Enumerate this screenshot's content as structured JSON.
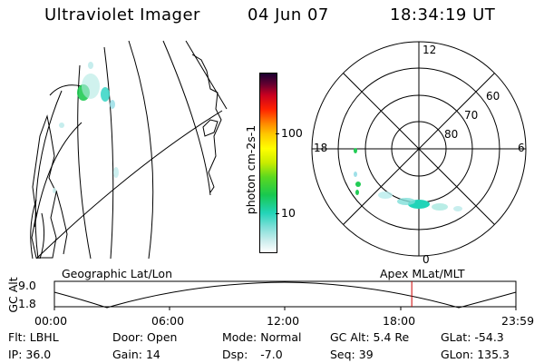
{
  "header": {
    "title": "Ultraviolet Imager",
    "date": "04 Jun 07",
    "time": "18:34:19 UT"
  },
  "colorbar": {
    "label": "photon cm-2s-1",
    "ticks": [
      {
        "value": 100,
        "label": "100"
      },
      {
        "value": 10,
        "label": "10"
      }
    ]
  },
  "polar": {
    "mlt_labels": {
      "top": "12",
      "left": "18",
      "right": "6",
      "bottom": "0"
    },
    "lat_labels": [
      "60",
      "70",
      "80"
    ]
  },
  "timeline": {
    "left_title": "Geographic Lat/Lon",
    "right_title": "Apex  MLat/MLT",
    "axis_label": "GC Alt",
    "y_ticks": [
      "9.0",
      "1.8"
    ],
    "x_ticks": [
      "00:00",
      "06:00",
      "12:00",
      "18:00",
      "23:59"
    ],
    "marker_time": "18:34:19",
    "colors": {
      "marker": "#cc0000"
    }
  },
  "info": [
    {
      "key": "flt",
      "label": "Flt:",
      "value": "LBHL"
    },
    {
      "key": "door",
      "label": "Door:",
      "value": "Open"
    },
    {
      "key": "mode",
      "label": "Mode:",
      "value": "Normal"
    },
    {
      "key": "gcalt",
      "label": "GC Alt:",
      "value": "5.4 Re"
    },
    {
      "key": "glat",
      "label": "GLat:",
      "value": "-54.3"
    },
    {
      "key": "ip",
      "label": "IP:",
      "value": "36.0"
    },
    {
      "key": "gain",
      "label": "Gain:",
      "value": "14"
    },
    {
      "key": "dsp",
      "label": "Dsp:",
      "value": "-7.0"
    },
    {
      "key": "seq",
      "label": "Seq:",
      "value": "39"
    },
    {
      "key": "glon",
      "label": "GLon:",
      "value": "135.3"
    }
  ]
}
